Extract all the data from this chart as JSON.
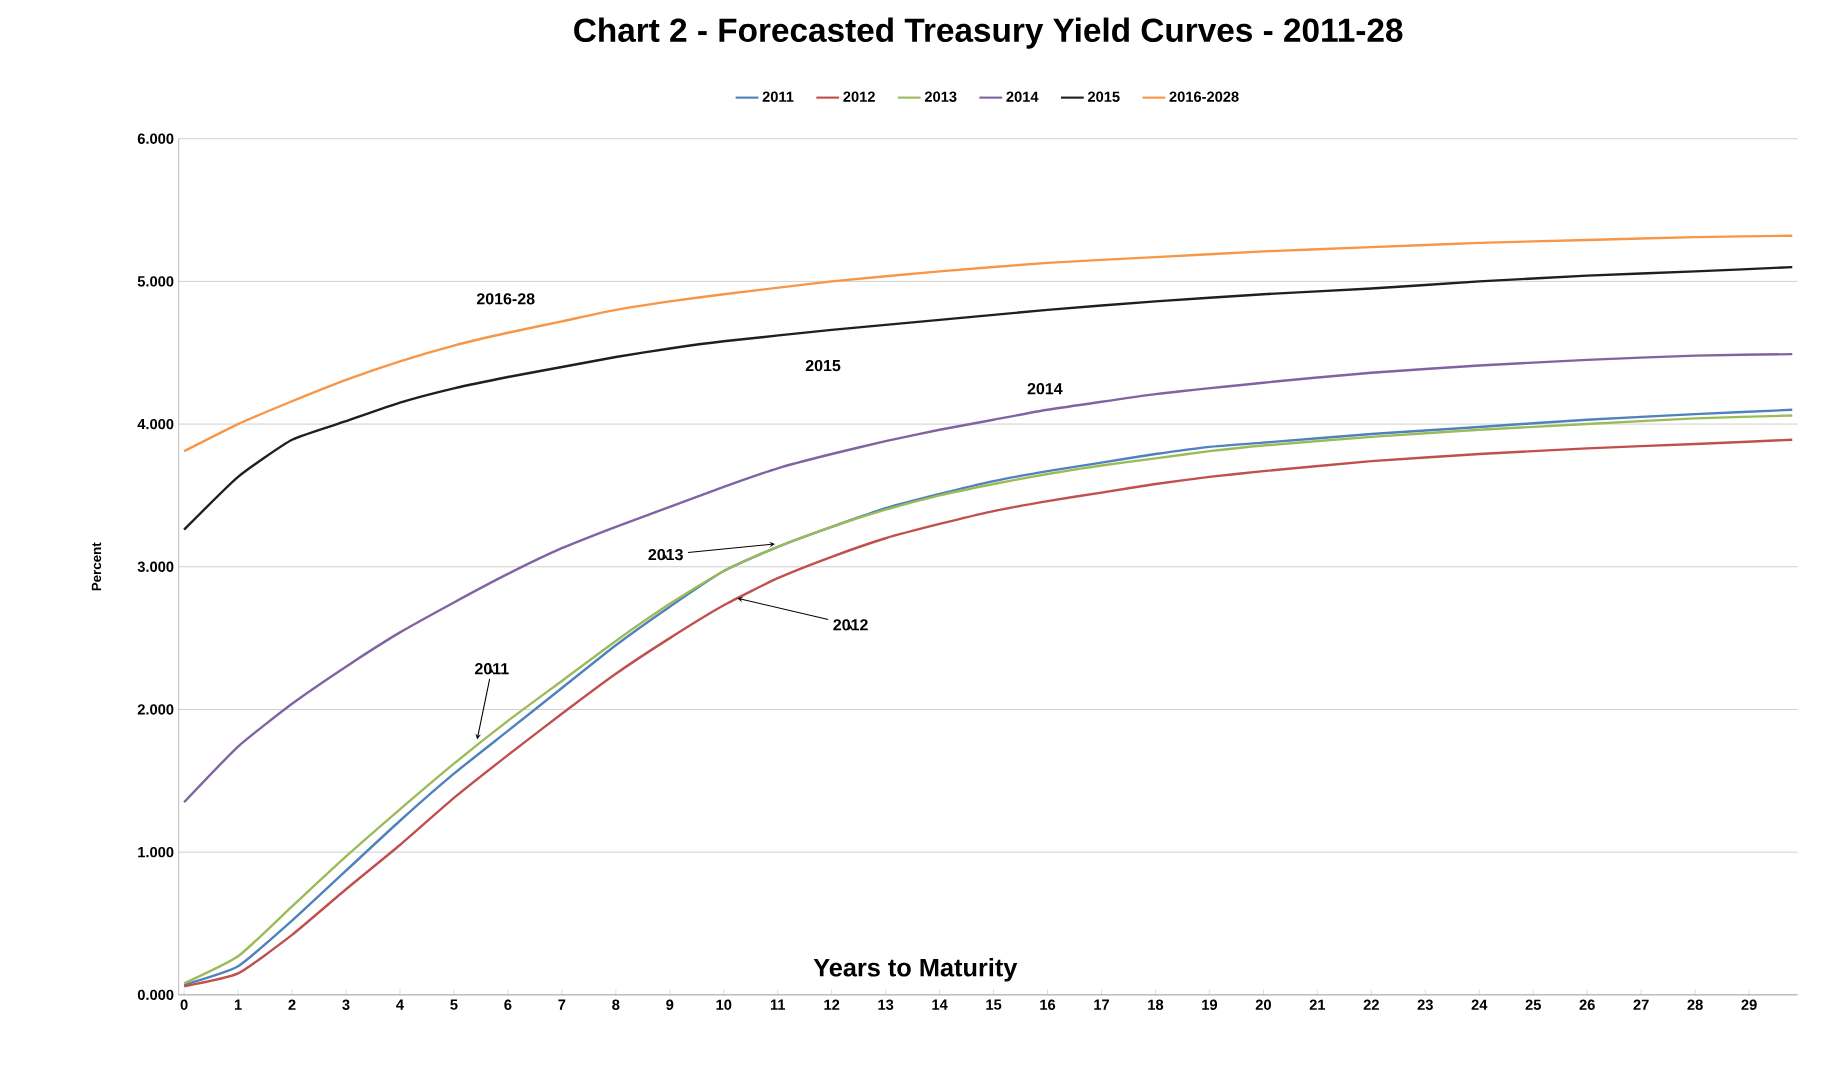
{
  "chart_data": {
    "type": "line",
    "title": "Chart 2 - Forecasted Treasury Yield Curves - 2011-28",
    "xlabel": "Years to Maturity",
    "ylabel": "Percent",
    "xlim": [
      -0.1,
      29.9
    ],
    "xticks": [
      0,
      1,
      2,
      3,
      4,
      5,
      6,
      7,
      8,
      9,
      10,
      11,
      12,
      13,
      14,
      15,
      16,
      17,
      18,
      19,
      20,
      21,
      22,
      23,
      24,
      25,
      26,
      27,
      28,
      29
    ],
    "ylim": [
      0,
      6
    ],
    "yticks": [
      {
        "value": 0,
        "label": "0.000"
      },
      {
        "value": 1,
        "label": "1.000"
      },
      {
        "value": 2,
        "label": "2.000"
      },
      {
        "value": 3,
        "label": "3.000"
      },
      {
        "value": 4,
        "label": "4.000"
      },
      {
        "value": 5,
        "label": "5.000"
      },
      {
        "value": 6,
        "label": "6.000"
      }
    ],
    "grid": "y",
    "legend": "top",
    "marker": "none",
    "line_style": "solid",
    "series": [
      {
        "name": "2011",
        "color": "#4f81bd",
        "x": [
          0,
          1,
          2,
          3,
          4,
          5,
          6,
          7,
          8,
          9,
          10,
          11,
          12,
          13,
          14,
          15,
          16,
          17,
          18,
          19,
          20,
          22,
          24,
          26,
          28,
          29.8
        ],
        "values": [
          0.07,
          0.2,
          0.52,
          0.87,
          1.22,
          1.55,
          1.85,
          2.15,
          2.45,
          2.72,
          2.97,
          3.14,
          3.28,
          3.41,
          3.51,
          3.6,
          3.67,
          3.73,
          3.79,
          3.84,
          3.87,
          3.93,
          3.98,
          4.03,
          4.07,
          4.1
        ]
      },
      {
        "name": "2012",
        "color": "#c0504d",
        "x": [
          0,
          1,
          2,
          3,
          4,
          5,
          6,
          7,
          8,
          9,
          10,
          11,
          12,
          13,
          14,
          15,
          16,
          17,
          18,
          19,
          20,
          22,
          24,
          26,
          28,
          29.8
        ],
        "values": [
          0.06,
          0.15,
          0.42,
          0.74,
          1.05,
          1.38,
          1.68,
          1.97,
          2.25,
          2.5,
          2.73,
          2.92,
          3.07,
          3.2,
          3.3,
          3.39,
          3.46,
          3.52,
          3.58,
          3.63,
          3.67,
          3.74,
          3.79,
          3.83,
          3.86,
          3.89
        ]
      },
      {
        "name": "2013",
        "color": "#9bbb59",
        "x": [
          0,
          1,
          2,
          3,
          4,
          5,
          6,
          7,
          8,
          9,
          10,
          11,
          12,
          13,
          14,
          15,
          16,
          17,
          18,
          19,
          20,
          22,
          24,
          26,
          28,
          29.8
        ],
        "values": [
          0.08,
          0.27,
          0.62,
          0.97,
          1.3,
          1.62,
          1.92,
          2.2,
          2.48,
          2.74,
          2.97,
          3.14,
          3.28,
          3.4,
          3.5,
          3.58,
          3.65,
          3.71,
          3.76,
          3.81,
          3.85,
          3.91,
          3.96,
          4.0,
          4.04,
          4.06
        ]
      },
      {
        "name": "2014",
        "color": "#8064a2",
        "x": [
          0,
          1,
          2,
          3,
          4,
          5,
          6,
          7,
          8,
          9,
          10,
          11,
          12,
          13,
          14,
          15,
          16,
          18,
          20,
          22,
          24,
          26,
          28,
          29.8
        ],
        "values": [
          1.35,
          1.74,
          2.04,
          2.3,
          2.54,
          2.75,
          2.95,
          3.13,
          3.28,
          3.42,
          3.56,
          3.69,
          3.79,
          3.88,
          3.96,
          4.03,
          4.1,
          4.21,
          4.29,
          4.36,
          4.41,
          4.45,
          4.48,
          4.49
        ]
      },
      {
        "name": "2015",
        "color": "#1f1f1f",
        "x": [
          0,
          1,
          2,
          3,
          4,
          5,
          6,
          7,
          8,
          9,
          10,
          12,
          14,
          16,
          18,
          20,
          22,
          24,
          26,
          28,
          29.8
        ],
        "values": [
          3.26,
          3.63,
          3.89,
          4.02,
          4.15,
          4.25,
          4.33,
          4.4,
          4.47,
          4.53,
          4.58,
          4.66,
          4.73,
          4.8,
          4.86,
          4.91,
          4.95,
          5.0,
          5.04,
          5.07,
          5.1
        ]
      },
      {
        "name": "2016-2028",
        "color": "#f79646",
        "x": [
          0,
          1,
          2,
          3,
          4,
          5,
          6,
          7,
          8,
          9,
          10,
          12,
          14,
          16,
          18,
          20,
          22,
          24,
          26,
          28,
          29.8
        ],
        "values": [
          3.81,
          4.0,
          4.16,
          4.31,
          4.44,
          4.55,
          4.64,
          4.72,
          4.8,
          4.86,
          4.91,
          5.0,
          5.07,
          5.13,
          5.17,
          5.21,
          5.24,
          5.27,
          5.29,
          5.31,
          5.32
        ]
      }
    ],
    "annotations": [
      "2016-28",
      "2015",
      "2014",
      {
        "text": "2013",
        "x": 10.95,
        "y": 3.16
      },
      {
        "text": "2012",
        "x": 10.25,
        "y": 2.78
      },
      {
        "text": "2011",
        "x": 5.43,
        "y": 1.79
      }
    ]
  }
}
